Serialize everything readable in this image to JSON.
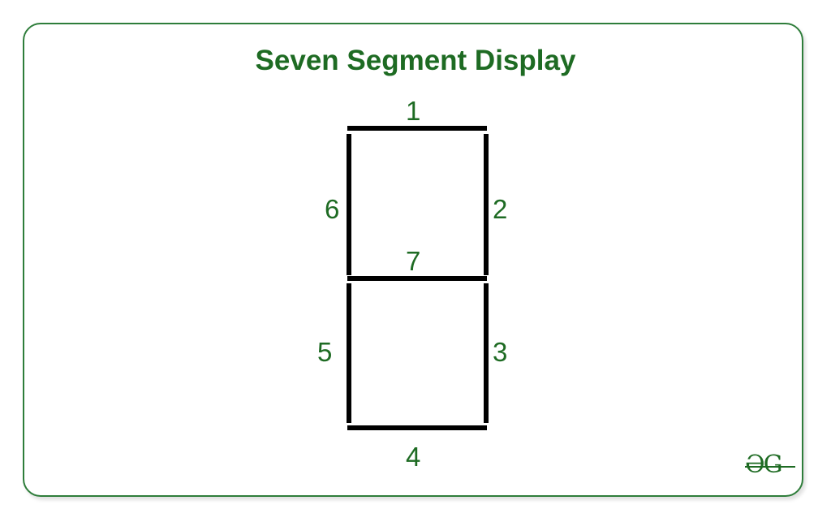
{
  "title": "Seven Segment Display",
  "segments": [
    {
      "id": 1,
      "label": "1",
      "orientation": "horizontal",
      "position": "top"
    },
    {
      "id": 2,
      "label": "2",
      "orientation": "vertical",
      "position": "upper-right"
    },
    {
      "id": 3,
      "label": "3",
      "orientation": "vertical",
      "position": "lower-right"
    },
    {
      "id": 4,
      "label": "4",
      "orientation": "horizontal",
      "position": "bottom"
    },
    {
      "id": 5,
      "label": "5",
      "orientation": "vertical",
      "position": "lower-left"
    },
    {
      "id": 6,
      "label": "6",
      "orientation": "vertical",
      "position": "upper-left"
    },
    {
      "id": 7,
      "label": "7",
      "orientation": "horizontal",
      "position": "middle"
    }
  ],
  "logo": {
    "text": "ƏG",
    "name": "geeksforgeeks-logo"
  },
  "colors": {
    "accent": "#1e6b23",
    "border": "#2e7d3a",
    "segment": "#000000",
    "background": "#ffffff"
  }
}
